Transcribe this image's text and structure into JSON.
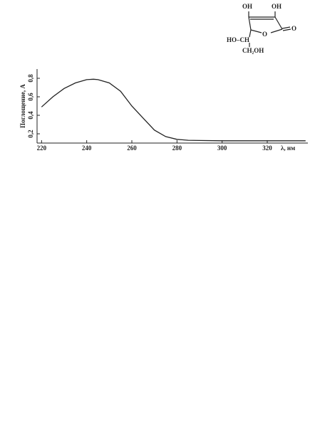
{
  "chart_data": {
    "type": "line",
    "xlabel": "λ, нм",
    "ylabel": "Поглощение, А",
    "x": [
      220,
      225,
      230,
      235,
      240,
      243,
      245,
      250,
      255,
      260,
      265,
      270,
      275,
      280,
      285,
      290,
      300,
      310,
      320,
      330,
      337
    ],
    "values": [
      0.49,
      0.6,
      0.69,
      0.75,
      0.785,
      0.79,
      0.785,
      0.75,
      0.66,
      0.5,
      0.37,
      0.24,
      0.17,
      0.14,
      0.13,
      0.128,
      0.125,
      0.125,
      0.125,
      0.125,
      0.125
    ],
    "color": "#222222",
    "xlim": [
      218,
      338
    ],
    "xticks": [
      220,
      240,
      260,
      280,
      300,
      320
    ],
    "ylim": [
      0.1,
      0.9
    ],
    "yticks": [
      {
        "value": 0.2,
        "label": "0,2"
      },
      {
        "value": 0.4,
        "label": "0,4"
      },
      {
        "value": 0.6,
        "label": "0,6"
      },
      {
        "value": 0.8,
        "label": "0,8"
      }
    ]
  },
  "structure": {
    "labels": [
      "OH",
      "OH",
      "O",
      "O",
      "HO–CH",
      "CH₂OH"
    ]
  }
}
